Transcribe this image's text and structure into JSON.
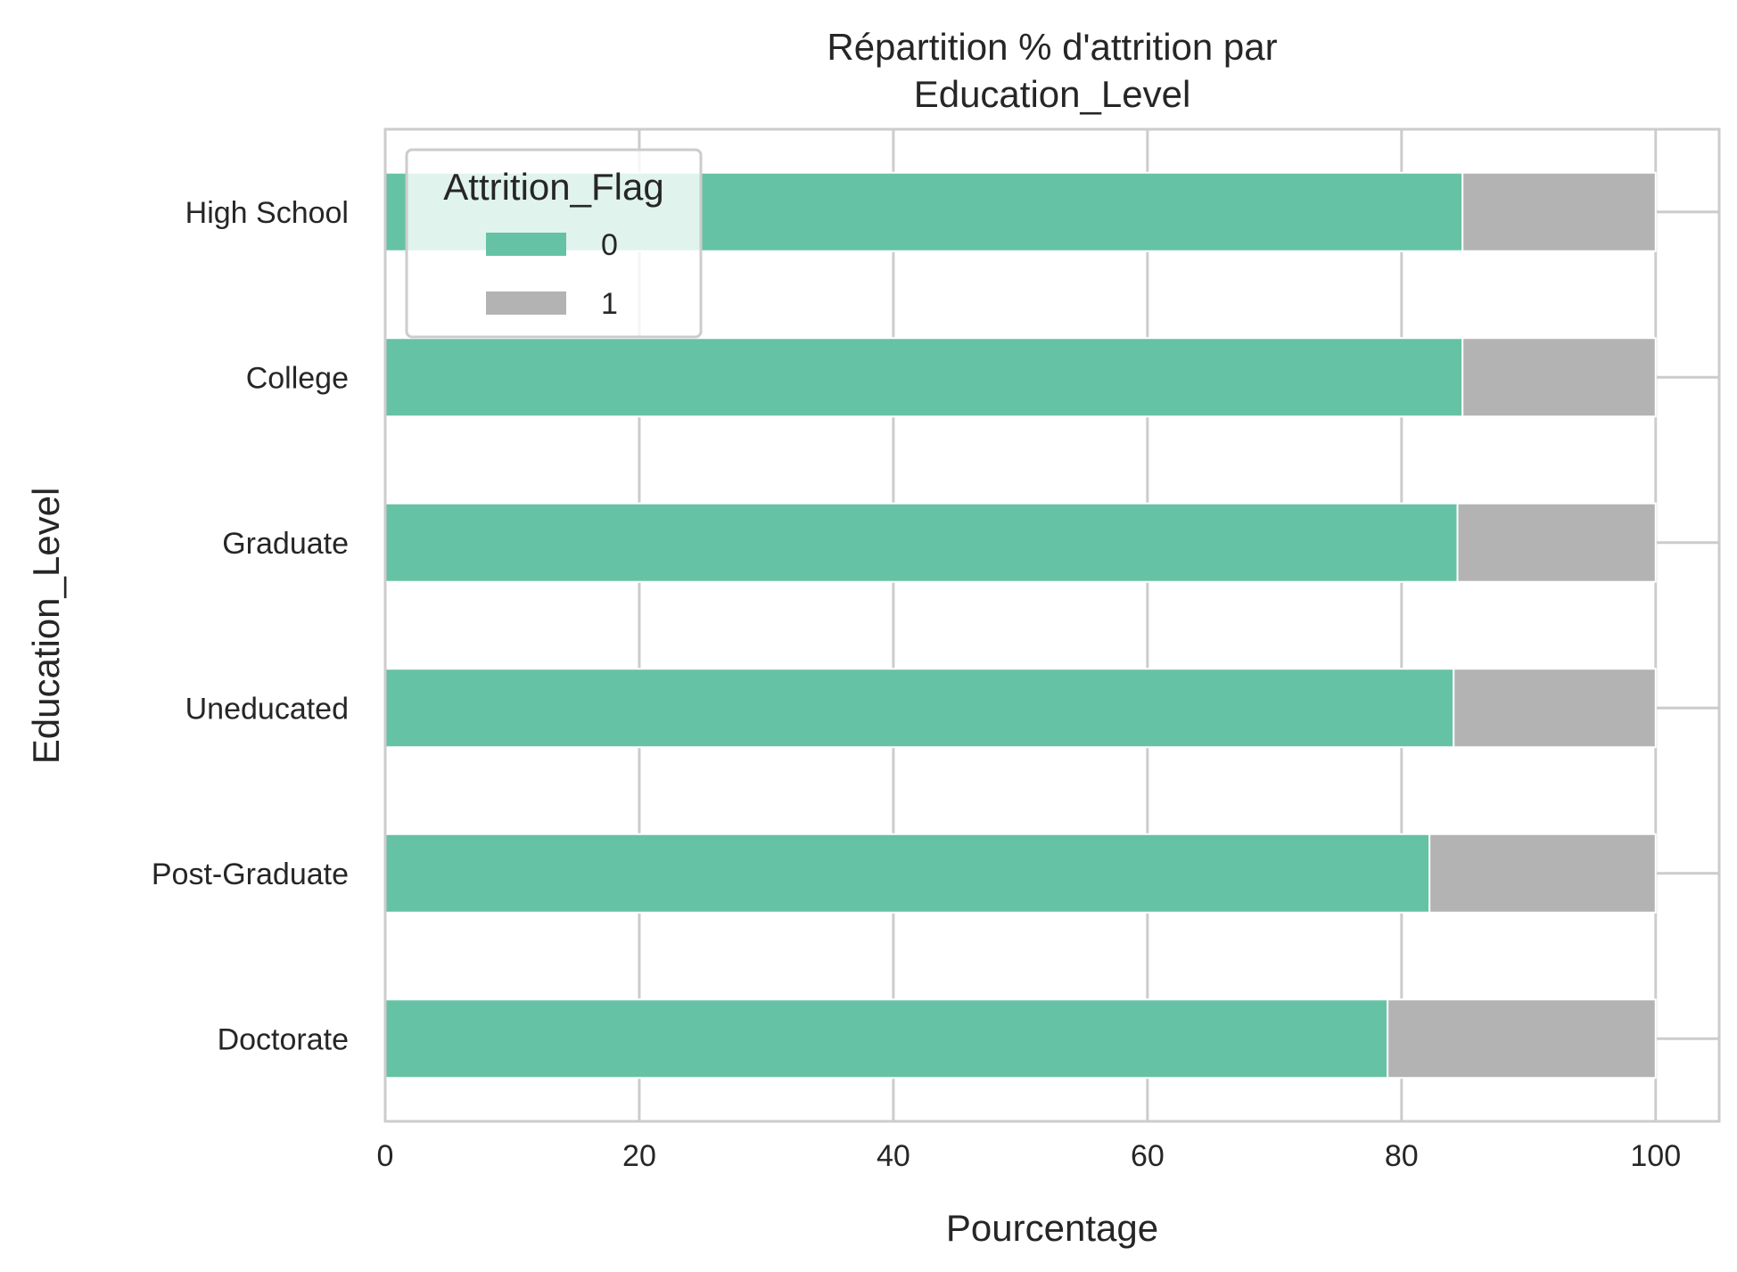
{
  "chart_data": {
    "type": "bar",
    "orientation": "horizontal",
    "stacked": true,
    "title": "Répartition % d'attrition par\nEducation_Level",
    "xlabel": "Pourcentage",
    "ylabel": "Education_Level",
    "xlim": [
      0,
      105
    ],
    "xticks": [
      0,
      20,
      40,
      60,
      80,
      100
    ],
    "categories": [
      "High School",
      "College",
      "Graduate",
      "Uneducated",
      "Post-Graduate",
      "Doctorate"
    ],
    "series": [
      {
        "name": "0",
        "color": "#66c2a5",
        "values": [
          84.8,
          84.8,
          84.4,
          84.1,
          82.2,
          78.9
        ]
      },
      {
        "name": "1",
        "color": "#b3b3b3",
        "values": [
          15.2,
          15.2,
          15.6,
          15.9,
          17.8,
          21.1
        ]
      }
    ],
    "legend": {
      "title": "Attrition_Flag",
      "position": "top-left"
    },
    "grid": true
  }
}
